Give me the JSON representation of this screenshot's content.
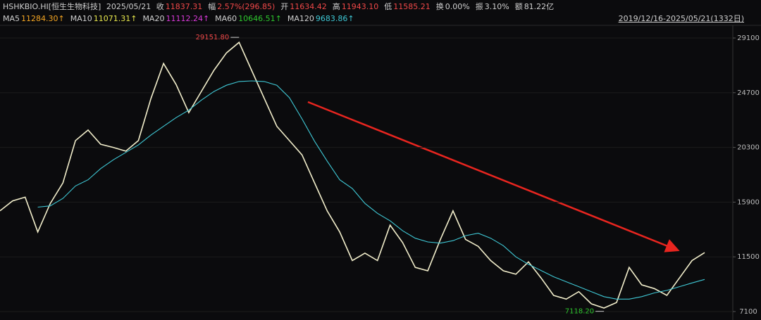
{
  "header": {
    "symbol": "HSHKBIO.HI[恒生生物科技]",
    "date": "2025/05/21",
    "fields": [
      {
        "label": "收",
        "value": "11837.31"
      },
      {
        "label": "幅",
        "value": "2.57%(296.85)"
      },
      {
        "label": "开",
        "value": "11634.42"
      },
      {
        "label": "高",
        "value": "11943.10"
      },
      {
        "label": "低",
        "value": "11585.21"
      },
      {
        "label": "换",
        "value": "0.00%"
      },
      {
        "label": "振",
        "value": "3.10%"
      },
      {
        "label": "额",
        "value": "81.22亿"
      }
    ],
    "ma_legend": [
      {
        "name": "MA5",
        "value": "11284.30↑",
        "color": "#f5a623"
      },
      {
        "name": "MA10",
        "value": "11071.31↑",
        "color": "#e8e84d"
      },
      {
        "name": "MA20",
        "value": "11112.24↑",
        "color": "#d93ad9"
      },
      {
        "name": "MA60",
        "value": "10646.51↑",
        "color": "#2ec72e"
      },
      {
        "name": "MA120",
        "value": "9683.86↑",
        "color": "#3fc9d6"
      }
    ],
    "range": "2019/12/16-2025/05/21(1332日)"
  },
  "chart_data": {
    "type": "line",
    "ylim": [
      6590,
      30120
    ],
    "yticks": [
      29100,
      24700,
      20300,
      15900,
      11500,
      7100
    ],
    "grid": true,
    "series": [
      {
        "color": "#f2eecb",
        "values": [
          15200,
          16000,
          16300,
          13500,
          15800,
          17450,
          20850,
          21700,
          20550,
          20300,
          20000,
          20850,
          24250,
          27050,
          25350,
          23100,
          24800,
          26500,
          27900,
          28750,
          26500,
          24250,
          22000,
          20850,
          19700,
          17450,
          15200,
          13500,
          11200,
          11800,
          11200,
          14050,
          12650,
          10650,
          10380,
          12900,
          15200,
          12900,
          12350,
          11200,
          10380,
          10100,
          11100,
          9800,
          8400,
          8100,
          8700,
          7720,
          7380,
          7830,
          10650,
          9250,
          8950,
          8400,
          9800,
          11200,
          11840
        ]
      },
      {
        "color": "#3fc9d6",
        "values": [
          null,
          null,
          null,
          15500,
          15600,
          16200,
          17200,
          17700,
          18600,
          19300,
          19900,
          20500,
          21300,
          22000,
          22700,
          23300,
          24100,
          24800,
          25300,
          25600,
          25650,
          25600,
          25300,
          24300,
          22600,
          20800,
          19200,
          17700,
          17000,
          15800,
          15000,
          14400,
          13600,
          13000,
          12700,
          12600,
          12800,
          13200,
          13400,
          13000,
          12400,
          11500,
          10900,
          10400,
          9900,
          9500,
          9100,
          8700,
          8300,
          8100,
          8100,
          8300,
          8600,
          8800,
          9100,
          9400,
          9684
        ]
      }
    ],
    "annotations": [
      {
        "label": "29151.80",
        "value": 29151.8,
        "color": "#f04848"
      },
      {
        "label": "7118.20",
        "value": 7118.2,
        "color": "#2ec72e"
      }
    ]
  }
}
